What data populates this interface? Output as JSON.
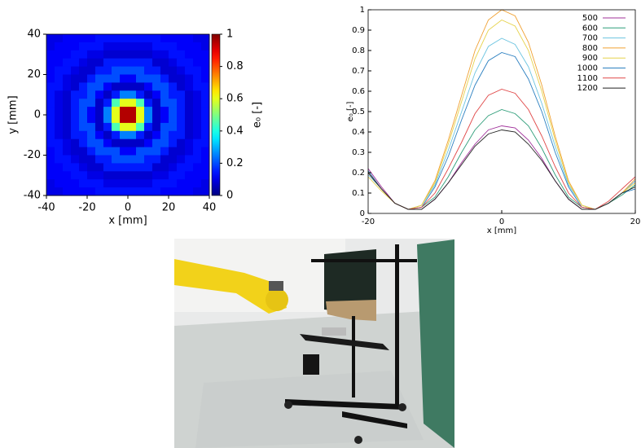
{
  "chart_data": [
    {
      "type": "heatmap",
      "xlabel": "x [mm]",
      "ylabel": "y [mm]",
      "colorbar_label": "e₀ [-]",
      "colormap": "jet",
      "x": [
        -38,
        -34,
        -30,
        -26,
        -22,
        -18,
        -14,
        -10,
        -6,
        -2,
        2,
        6,
        10,
        14,
        18,
        22,
        26,
        30,
        34,
        38
      ],
      "y": [
        38,
        34,
        30,
        26,
        22,
        18,
        14,
        10,
        6,
        2,
        -2,
        -6,
        -10,
        -14,
        -18,
        -22,
        -26,
        -30,
        -34,
        -38
      ],
      "z": [
        [
          0.1,
          0.1,
          0.12,
          0.12,
          0.12,
          0.12,
          0.14,
          0.14,
          0.14,
          0.14,
          0.14,
          0.14,
          0.14,
          0.14,
          0.12,
          0.12,
          0.12,
          0.12,
          0.1,
          0.1
        ],
        [
          0.1,
          0.12,
          0.12,
          0.12,
          0.14,
          0.14,
          0.14,
          0.1,
          0.1,
          0.1,
          0.1,
          0.1,
          0.1,
          0.14,
          0.14,
          0.14,
          0.12,
          0.12,
          0.12,
          0.1
        ],
        [
          0.12,
          0.12,
          0.12,
          0.14,
          0.14,
          0.1,
          0.1,
          0.08,
          0.08,
          0.08,
          0.08,
          0.08,
          0.08,
          0.1,
          0.1,
          0.14,
          0.14,
          0.12,
          0.12,
          0.12
        ],
        [
          0.12,
          0.12,
          0.14,
          0.14,
          0.1,
          0.08,
          0.08,
          0.15,
          0.15,
          0.15,
          0.15,
          0.15,
          0.15,
          0.08,
          0.08,
          0.1,
          0.14,
          0.14,
          0.12,
          0.12
        ],
        [
          0.12,
          0.14,
          0.14,
          0.1,
          0.08,
          0.08,
          0.15,
          0.15,
          0.2,
          0.2,
          0.2,
          0.2,
          0.15,
          0.15,
          0.08,
          0.08,
          0.1,
          0.14,
          0.14,
          0.12
        ],
        [
          0.12,
          0.14,
          0.1,
          0.08,
          0.08,
          0.15,
          0.2,
          0.2,
          0.2,
          0.12,
          0.12,
          0.2,
          0.2,
          0.2,
          0.15,
          0.08,
          0.08,
          0.1,
          0.14,
          0.12
        ],
        [
          0.14,
          0.14,
          0.1,
          0.08,
          0.15,
          0.2,
          0.2,
          0.12,
          0.07,
          0.07,
          0.07,
          0.07,
          0.12,
          0.2,
          0.2,
          0.15,
          0.08,
          0.1,
          0.14,
          0.14
        ],
        [
          0.14,
          0.1,
          0.08,
          0.15,
          0.15,
          0.2,
          0.12,
          0.07,
          0.15,
          0.25,
          0.25,
          0.15,
          0.07,
          0.12,
          0.2,
          0.15,
          0.15,
          0.08,
          0.1,
          0.14
        ],
        [
          0.14,
          0.1,
          0.08,
          0.15,
          0.2,
          0.2,
          0.07,
          0.15,
          0.45,
          0.6,
          0.6,
          0.45,
          0.15,
          0.07,
          0.2,
          0.2,
          0.15,
          0.08,
          0.1,
          0.14
        ],
        [
          0.14,
          0.1,
          0.08,
          0.15,
          0.2,
          0.12,
          0.07,
          0.25,
          0.6,
          0.95,
          0.95,
          0.6,
          0.25,
          0.07,
          0.12,
          0.2,
          0.15,
          0.08,
          0.1,
          0.14
        ],
        [
          0.14,
          0.1,
          0.08,
          0.15,
          0.2,
          0.12,
          0.07,
          0.25,
          0.6,
          0.95,
          0.95,
          0.6,
          0.25,
          0.07,
          0.12,
          0.2,
          0.15,
          0.08,
          0.1,
          0.14
        ],
        [
          0.14,
          0.1,
          0.08,
          0.15,
          0.2,
          0.2,
          0.07,
          0.15,
          0.45,
          0.6,
          0.6,
          0.45,
          0.15,
          0.07,
          0.2,
          0.2,
          0.15,
          0.08,
          0.1,
          0.14
        ],
        [
          0.14,
          0.1,
          0.08,
          0.15,
          0.15,
          0.2,
          0.12,
          0.07,
          0.15,
          0.25,
          0.25,
          0.15,
          0.07,
          0.12,
          0.2,
          0.15,
          0.15,
          0.08,
          0.1,
          0.14
        ],
        [
          0.14,
          0.14,
          0.1,
          0.08,
          0.15,
          0.2,
          0.2,
          0.12,
          0.07,
          0.07,
          0.07,
          0.07,
          0.12,
          0.2,
          0.2,
          0.15,
          0.08,
          0.1,
          0.14,
          0.14
        ],
        [
          0.12,
          0.14,
          0.1,
          0.08,
          0.08,
          0.15,
          0.2,
          0.2,
          0.2,
          0.12,
          0.12,
          0.2,
          0.2,
          0.2,
          0.15,
          0.08,
          0.08,
          0.1,
          0.14,
          0.12
        ],
        [
          0.12,
          0.14,
          0.14,
          0.1,
          0.08,
          0.08,
          0.15,
          0.15,
          0.2,
          0.2,
          0.2,
          0.2,
          0.15,
          0.15,
          0.08,
          0.08,
          0.1,
          0.14,
          0.14,
          0.12
        ],
        [
          0.12,
          0.12,
          0.14,
          0.14,
          0.1,
          0.08,
          0.08,
          0.15,
          0.15,
          0.15,
          0.15,
          0.15,
          0.15,
          0.08,
          0.08,
          0.1,
          0.14,
          0.14,
          0.12,
          0.12
        ],
        [
          0.12,
          0.12,
          0.12,
          0.14,
          0.14,
          0.1,
          0.1,
          0.08,
          0.08,
          0.08,
          0.08,
          0.08,
          0.08,
          0.1,
          0.1,
          0.14,
          0.14,
          0.12,
          0.12,
          0.12
        ],
        [
          0.1,
          0.12,
          0.12,
          0.12,
          0.14,
          0.14,
          0.14,
          0.1,
          0.1,
          0.1,
          0.1,
          0.1,
          0.1,
          0.14,
          0.14,
          0.14,
          0.12,
          0.12,
          0.12,
          0.1
        ],
        [
          0.1,
          0.1,
          0.12,
          0.12,
          0.12,
          0.12,
          0.14,
          0.14,
          0.14,
          0.14,
          0.14,
          0.14,
          0.14,
          0.14,
          0.12,
          0.12,
          0.12,
          0.12,
          0.1,
          0.1
        ]
      ],
      "xlim": [
        -40,
        40
      ],
      "ylim": [
        -40,
        40
      ],
      "xticks": [
        -40,
        -20,
        0,
        20,
        40
      ],
      "yticks": [
        -40,
        -20,
        0,
        20,
        40
      ],
      "clim": [
        0,
        1
      ],
      "cticks": [
        0,
        0.2,
        0.4,
        0.6,
        0.8,
        1
      ]
    },
    {
      "type": "line",
      "xlabel": "x [mm]",
      "ylabel": "e₀ [-]",
      "x": [
        -20,
        -18,
        -16,
        -14,
        -12,
        -10,
        -8,
        -6,
        -4,
        -2,
        0,
        2,
        4,
        6,
        8,
        10,
        12,
        14,
        16,
        18,
        20
      ],
      "series": [
        {
          "name": "500",
          "color": "#a0309a",
          "values": [
            0.22,
            0.13,
            0.05,
            0.02,
            0.02,
            0.07,
            0.15,
            0.25,
            0.34,
            0.41,
            0.43,
            0.42,
            0.36,
            0.27,
            0.16,
            0.07,
            0.02,
            0.02,
            0.05,
            0.1,
            0.16
          ]
        },
        {
          "name": "600",
          "color": "#2f9e7a",
          "values": [
            0.2,
            0.12,
            0.05,
            0.02,
            0.03,
            0.08,
            0.18,
            0.3,
            0.41,
            0.48,
            0.51,
            0.49,
            0.43,
            0.32,
            0.19,
            0.08,
            0.03,
            0.02,
            0.05,
            0.09,
            0.14
          ]
        },
        {
          "name": "700",
          "color": "#6cc4e0",
          "values": [
            0.19,
            0.12,
            0.05,
            0.02,
            0.04,
            0.14,
            0.31,
            0.5,
            0.69,
            0.82,
            0.86,
            0.83,
            0.72,
            0.54,
            0.33,
            0.14,
            0.04,
            0.02,
            0.05,
            0.1,
            0.16
          ]
        },
        {
          "name": "800",
          "color": "#f0a030",
          "values": [
            0.2,
            0.12,
            0.05,
            0.02,
            0.04,
            0.16,
            0.36,
            0.58,
            0.8,
            0.95,
            1.0,
            0.97,
            0.84,
            0.63,
            0.38,
            0.16,
            0.04,
            0.02,
            0.05,
            0.1,
            0.17
          ]
        },
        {
          "name": "900",
          "color": "#e6d24a",
          "values": [
            0.18,
            0.11,
            0.05,
            0.02,
            0.04,
            0.15,
            0.34,
            0.55,
            0.76,
            0.9,
            0.95,
            0.92,
            0.8,
            0.6,
            0.36,
            0.15,
            0.04,
            0.02,
            0.05,
            0.1,
            0.15
          ]
        },
        {
          "name": "1000",
          "color": "#2a7fc0",
          "values": [
            0.21,
            0.12,
            0.05,
            0.02,
            0.03,
            0.13,
            0.28,
            0.46,
            0.63,
            0.75,
            0.79,
            0.77,
            0.66,
            0.5,
            0.3,
            0.13,
            0.03,
            0.02,
            0.05,
            0.1,
            0.12
          ]
        },
        {
          "name": "1100",
          "color": "#e04848",
          "values": [
            0.2,
            0.12,
            0.05,
            0.02,
            0.03,
            0.1,
            0.22,
            0.35,
            0.49,
            0.58,
            0.61,
            0.59,
            0.51,
            0.38,
            0.23,
            0.1,
            0.03,
            0.02,
            0.06,
            0.12,
            0.18
          ]
        },
        {
          "name": "1200",
          "color": "#222222",
          "values": [
            0.2,
            0.12,
            0.05,
            0.02,
            0.02,
            0.07,
            0.15,
            0.24,
            0.33,
            0.39,
            0.41,
            0.4,
            0.34,
            0.26,
            0.16,
            0.07,
            0.02,
            0.02,
            0.05,
            0.1,
            0.13
          ]
        }
      ],
      "xlim": [
        -20,
        20
      ],
      "ylim": [
        0,
        1
      ],
      "xticks": [
        -20,
        0,
        20
      ],
      "yticks": [
        0,
        0.1,
        0.2,
        0.3,
        0.4,
        0.5,
        0.6,
        0.7,
        0.8,
        0.9,
        1
      ],
      "grid": false,
      "legend": "upper right"
    }
  ]
}
